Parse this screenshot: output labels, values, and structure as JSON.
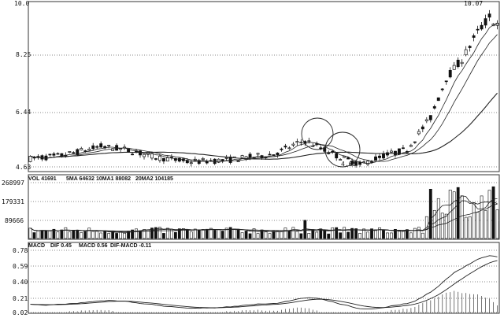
{
  "chart_data": [
    {
      "type": "candlestick",
      "panel": "price",
      "y_ticks": [
        "10.0",
        "8.25",
        "6.44",
        "4.63"
      ],
      "ylim": [
        4.63,
        10.0
      ],
      "annotations": {
        "high_label": "10.07",
        "low_label": "4.63"
      },
      "grid": true,
      "bars": 120
    },
    {
      "type": "bar",
      "panel": "volume",
      "legend": {
        "vol": "VOL 41691",
        "ma1": "5MA 64632",
        "ma2": "10MA1 88082",
        "ma3": "20MA2 104185"
      },
      "y_ticks": [
        "268997",
        "179331",
        "89666"
      ],
      "ylim": [
        0,
        268997
      ],
      "grid": true
    },
    {
      "type": "line",
      "panel": "macd",
      "legend": {
        "name": "MACD",
        "dif": "DIF 0.45",
        "macd": "MACD 0.56",
        "diff2": "DIF-MACD -0.11"
      },
      "y_ticks": [
        "0.78",
        "0.59",
        "0.40",
        "0.21",
        "0.02"
      ],
      "ylim": [
        0.02,
        0.78
      ],
      "grid": true
    }
  ]
}
